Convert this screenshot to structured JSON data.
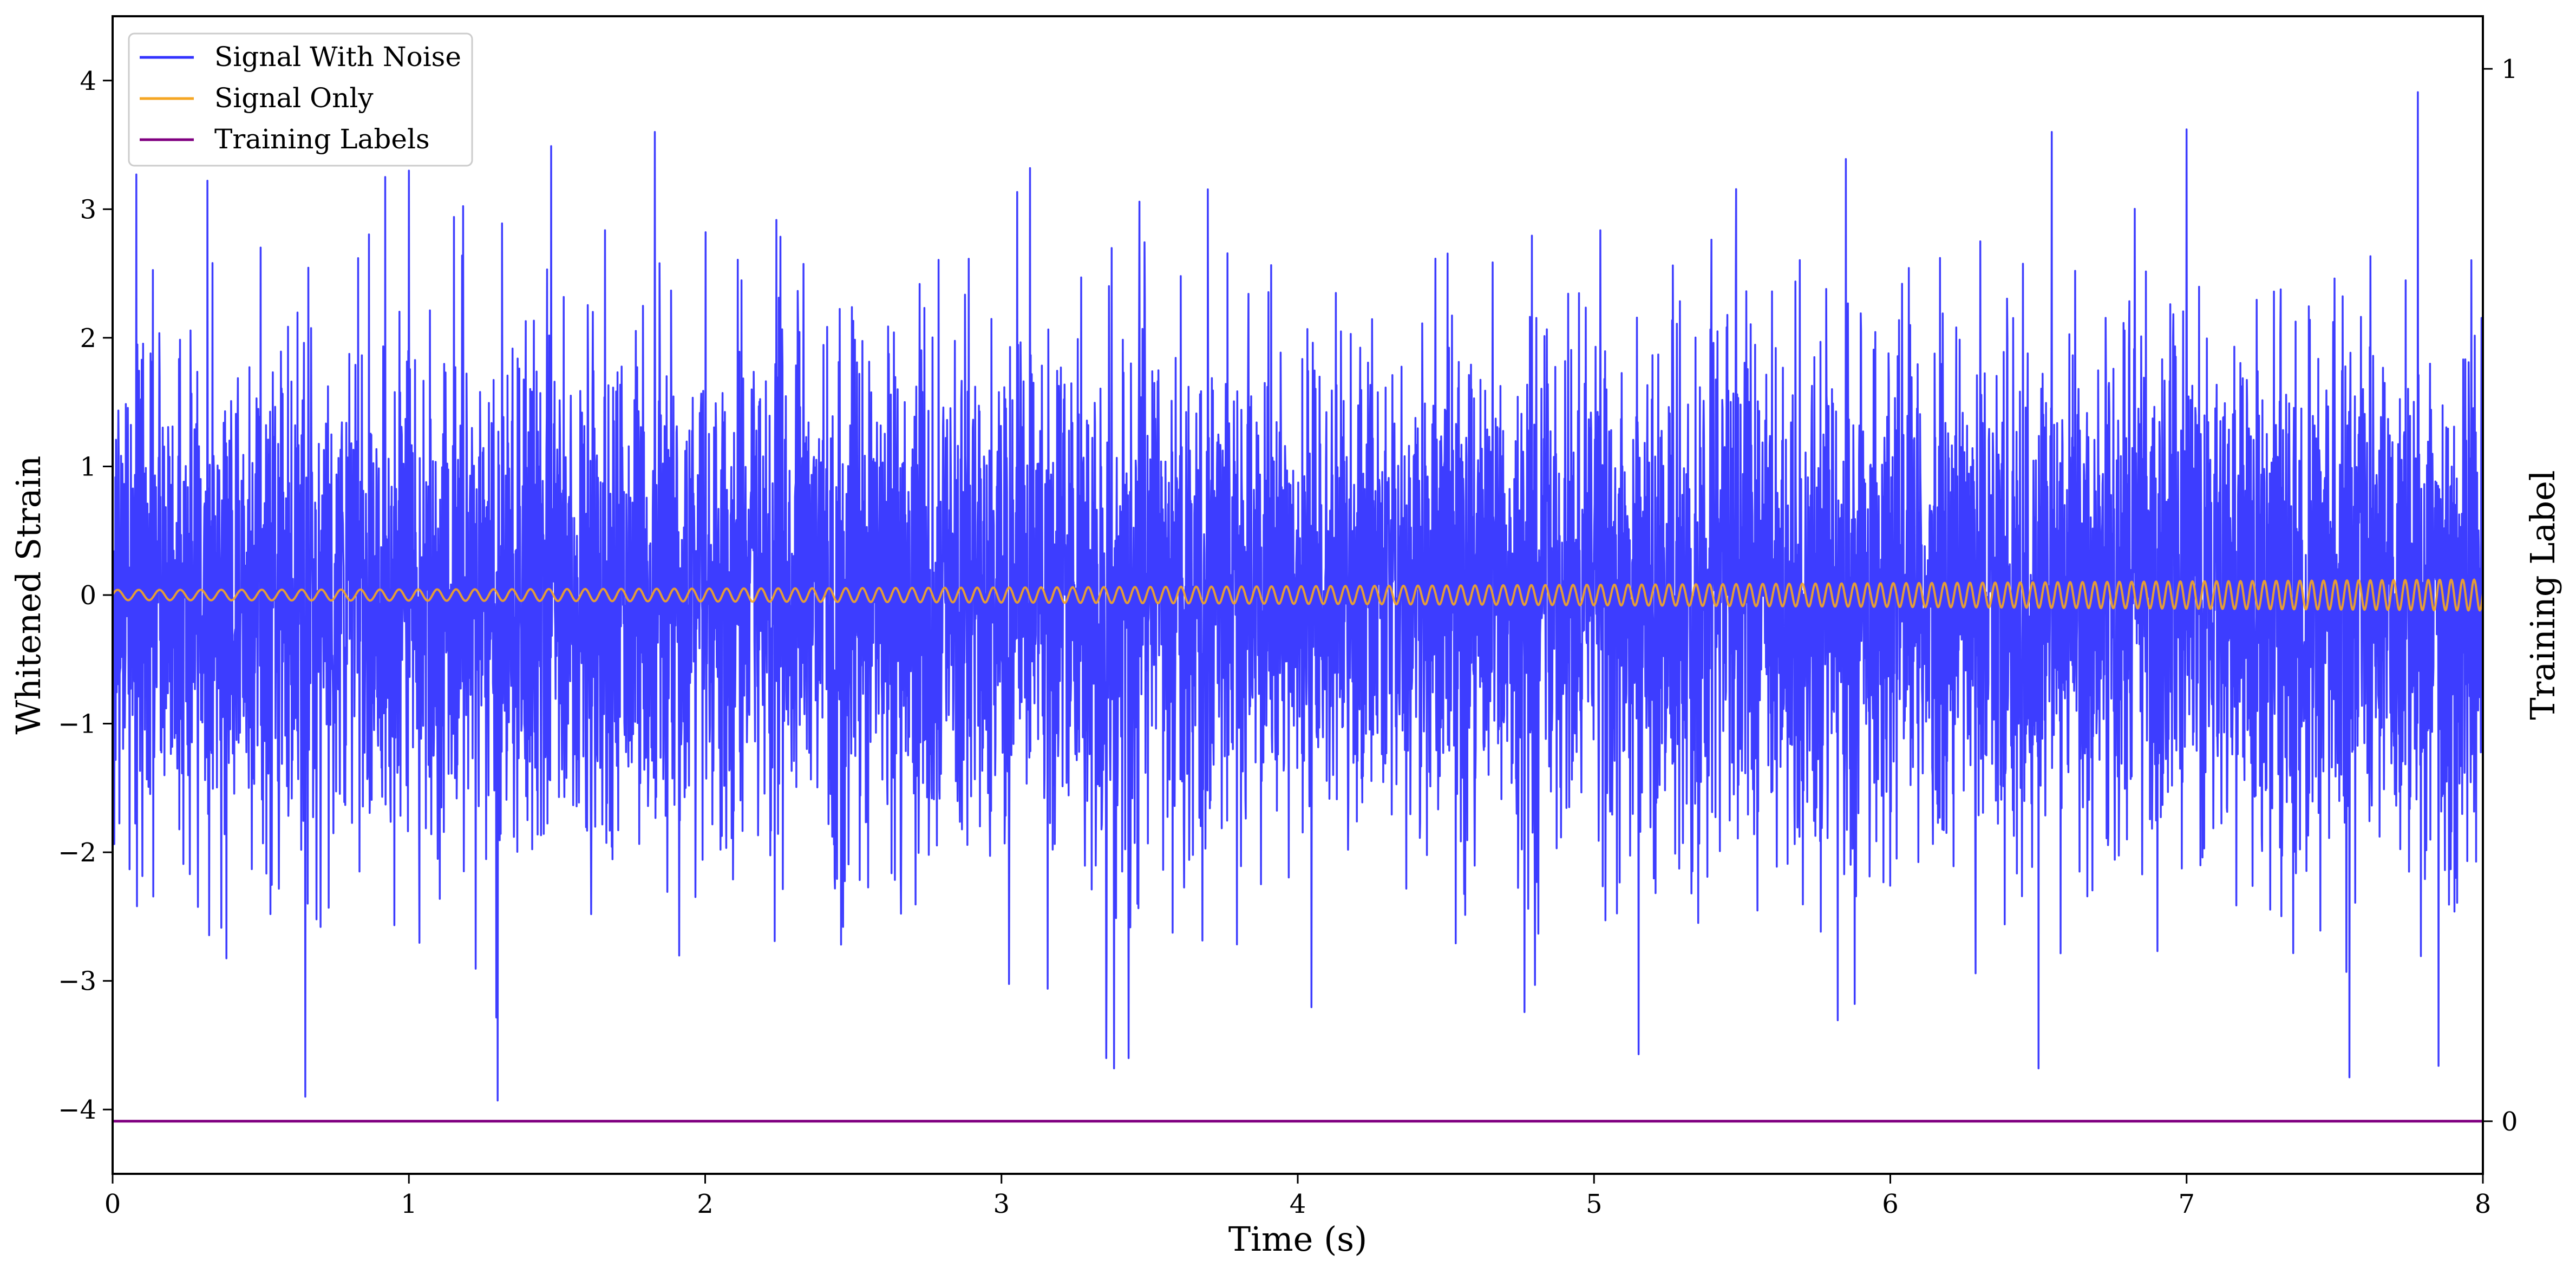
{
  "chart_data": {
    "type": "line",
    "title": "",
    "xlabel": "Time (s)",
    "ylabel": "Whitened Strain",
    "ylabel_right": "Training Label",
    "xlim": [
      0,
      8
    ],
    "ylim": [
      -4.5,
      4.5
    ],
    "ylim_right": [
      -0.05,
      1.05
    ],
    "x_ticks": [
      0,
      1,
      2,
      3,
      4,
      5,
      6,
      7,
      8
    ],
    "x_tick_labels": [
      "0",
      "1",
      "2",
      "3",
      "4",
      "5",
      "6",
      "7",
      "8"
    ],
    "y_ticks": [
      -4,
      -3,
      -2,
      -1,
      0,
      1,
      2,
      3,
      4
    ],
    "y_tick_labels": [
      "−4",
      "−3",
      "−2",
      "−1",
      "0",
      "1",
      "2",
      "3",
      "4"
    ],
    "y_right_ticks": [
      0,
      1
    ],
    "y_right_tick_labels": [
      "0",
      "1"
    ],
    "grid": false,
    "legend_position": "top-left",
    "series": [
      {
        "name": "Signal With Noise",
        "color": "#3333ff",
        "axis": "left",
        "description_stats": {
          "mean": 0.0,
          "std": 1.0,
          "min": -3.9,
          "max": 3.9
        },
        "notable_peaks": [
          {
            "x": 0.08,
            "y": 3.27
          },
          {
            "x": 0.65,
            "y": -3.9
          },
          {
            "x": 0.92,
            "y": 3.25
          },
          {
            "x": 1.0,
            "y": 3.3
          },
          {
            "x": 1.3,
            "y": -3.93
          },
          {
            "x": 1.48,
            "y": 3.49
          },
          {
            "x": 1.83,
            "y": 3.6
          },
          {
            "x": 3.38,
            "y": -3.68
          },
          {
            "x": 5.15,
            "y": -3.57
          },
          {
            "x": 5.85,
            "y": 3.39
          },
          {
            "x": 6.5,
            "y": -3.68
          },
          {
            "x": 7.0,
            "y": 3.62
          },
          {
            "x": 7.55,
            "y": -3.75
          },
          {
            "x": 7.78,
            "y": 3.91
          },
          {
            "x": 7.85,
            "y": -3.66
          }
        ]
      },
      {
        "name": "Signal Only",
        "color": "#f5a623",
        "axis": "left",
        "chirp": {
          "amplitude_start": 0.04,
          "amplitude_end": 0.12,
          "freq_start_hz": 14,
          "freq_end_hz": 26
        }
      },
      {
        "name": "Training Labels",
        "color": "#800080",
        "axis": "right",
        "x": [
          0,
          8
        ],
        "y": [
          0,
          0
        ]
      }
    ]
  }
}
